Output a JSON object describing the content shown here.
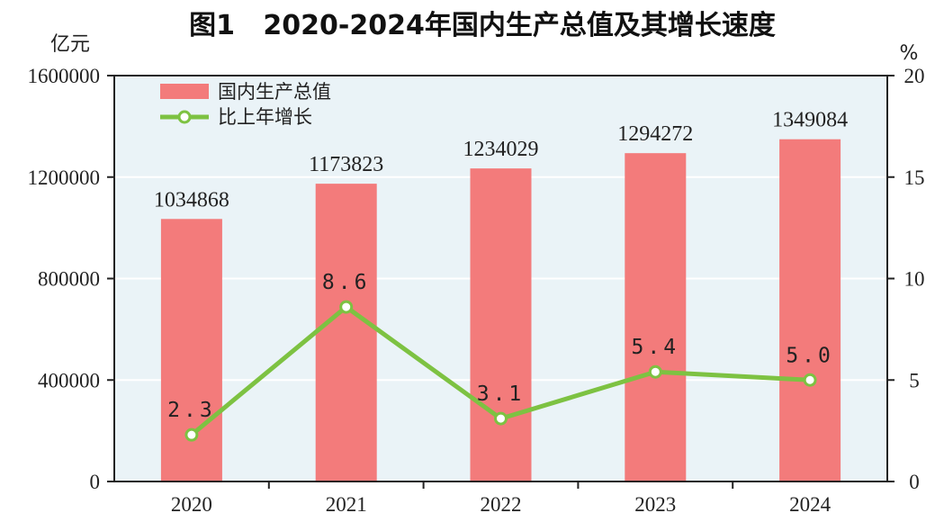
{
  "chart_data": {
    "type": "bar",
    "title": "图1   2020-2024年国内生产总值及其增长速度",
    "categories": [
      "2020",
      "2021",
      "2022",
      "2023",
      "2024"
    ],
    "series": [
      {
        "name": "国内生产总值",
        "type": "bar",
        "axis": "left",
        "values": [
          1034868,
          1173823,
          1234029,
          1294272,
          1349084
        ],
        "color": "#f37b7b"
      },
      {
        "name": "比上年增长",
        "type": "line",
        "axis": "right",
        "values": [
          2.3,
          8.6,
          3.1,
          5.4,
          5.0
        ],
        "labels": [
          "2.3",
          "8.6",
          "3.1",
          "5.4",
          "5.0"
        ],
        "color": "#7dc242"
      }
    ],
    "y_left": {
      "unit": "亿元",
      "ylim": [
        0,
        1600000
      ],
      "ticks": [
        0,
        400000,
        800000,
        1200000,
        1600000
      ]
    },
    "y_right": {
      "unit": "%",
      "ylim": [
        0,
        20
      ],
      "ticks": [
        0,
        5,
        10,
        15,
        20
      ]
    },
    "grid": true,
    "legend": "top-left",
    "plot_background": "#eaf3f7"
  }
}
